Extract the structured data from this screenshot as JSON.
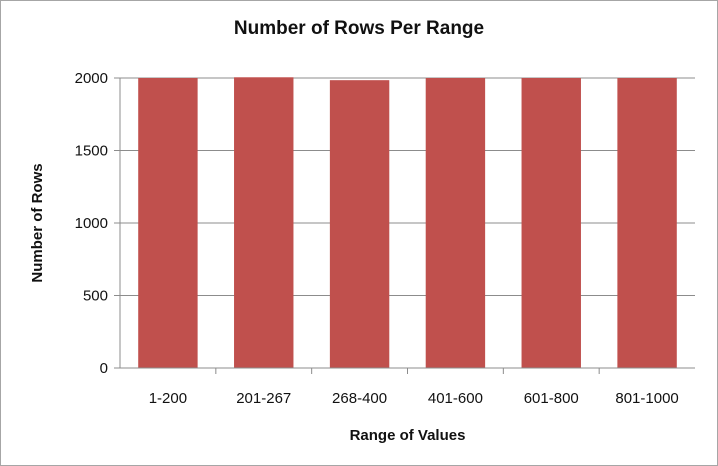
{
  "chart_data": {
    "type": "bar",
    "title": "Number of Rows Per Range",
    "xlabel": "Range of Values",
    "ylabel": "Number of Rows",
    "categories": [
      "1-200",
      "201-267",
      "268-400",
      "401-600",
      "601-800",
      "801-1000"
    ],
    "values": [
      2000,
      2005,
      1985,
      2000,
      2000,
      2000
    ],
    "ylim": [
      0,
      2000
    ],
    "yticks": [
      0,
      500,
      1000,
      1500,
      2000
    ],
    "grid": true,
    "legend": "none",
    "bar_color": "#c0504d",
    "grid_color": "#8c8c8c"
  }
}
